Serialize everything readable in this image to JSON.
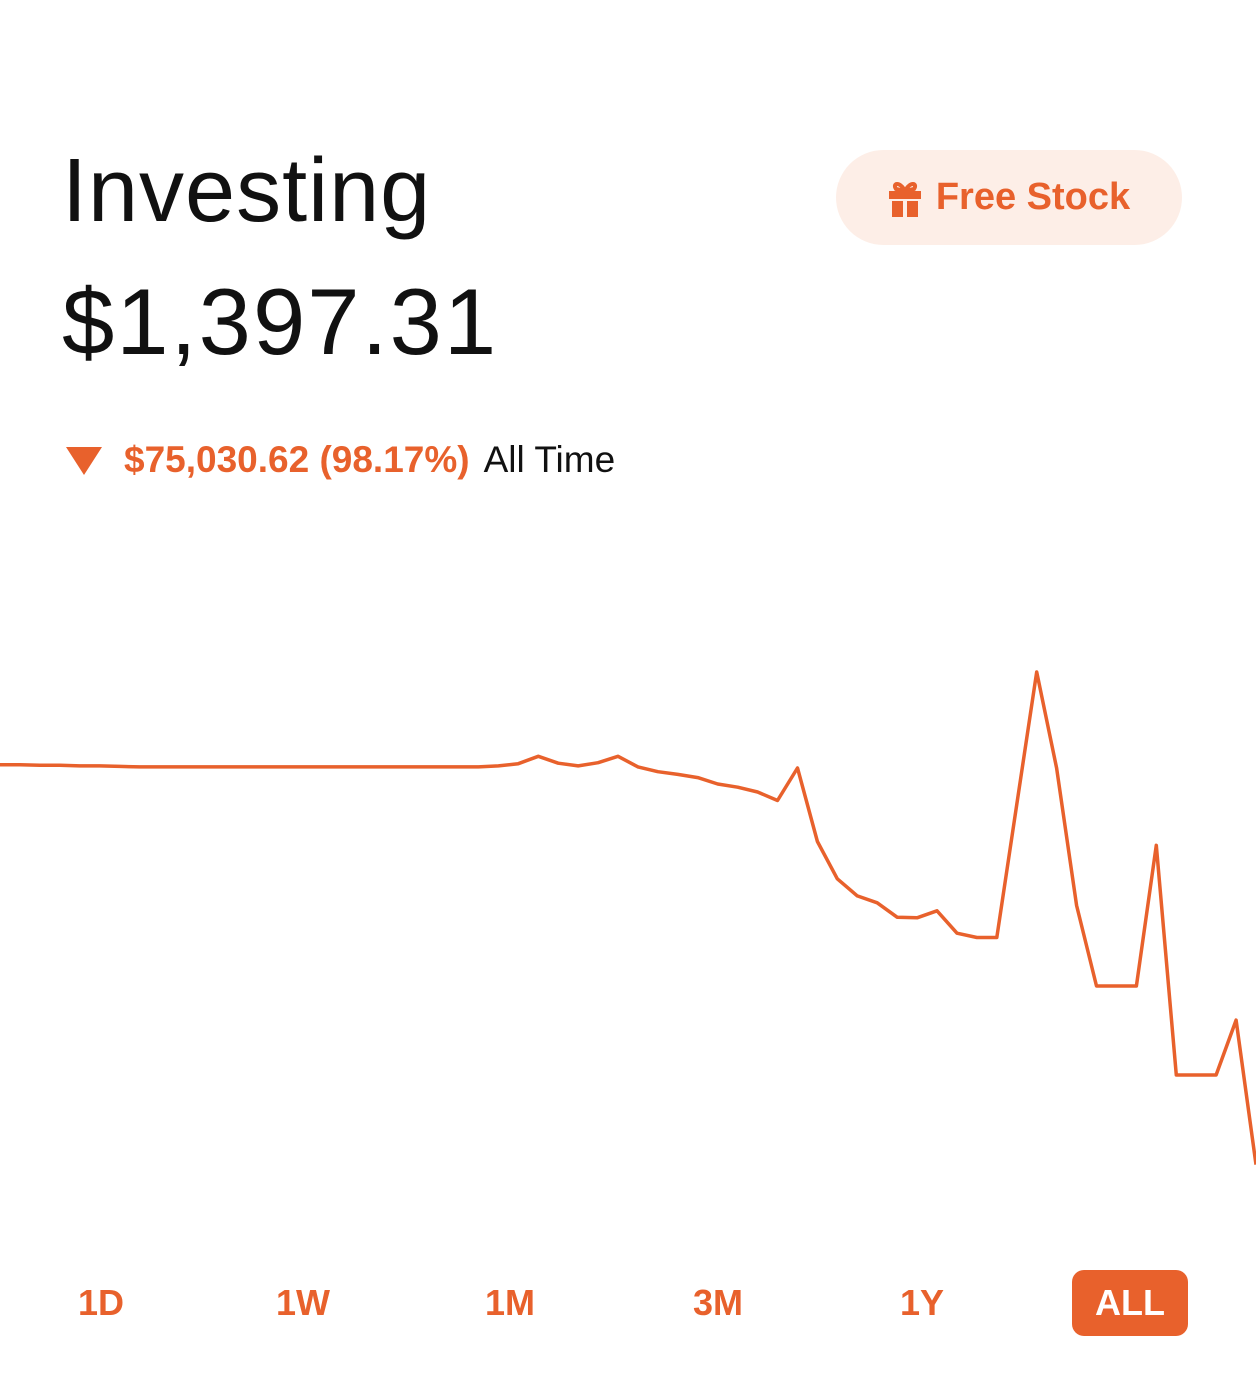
{
  "header": {
    "title": "Investing",
    "value": "$1,397.31",
    "change": "$75,030.62 (98.17%)",
    "period": "All Time",
    "promo_button": "Free Stock"
  },
  "chart_data": {
    "type": "line",
    "color": "#e8612c",
    "ylim": [
      0,
      100000
    ],
    "values": [
      76400,
      76400,
      76300,
      76300,
      76200,
      76200,
      76100,
      76000,
      76000,
      76000,
      76000,
      76000,
      76000,
      76000,
      76000,
      76000,
      76000,
      76000,
      76000,
      76000,
      76000,
      76000,
      76000,
      76000,
      76000,
      76200,
      76600,
      78000,
      76700,
      76200,
      76800,
      78000,
      76000,
      75100,
      74600,
      74000,
      72800,
      72200,
      71300,
      69700,
      75800,
      62000,
      55000,
      51800,
      50500,
      47800,
      47700,
      49000,
      44800,
      44000,
      44000,
      69000,
      93800,
      75800,
      50000,
      34900,
      34900,
      34900,
      61300,
      18200,
      18200,
      18200,
      28500,
      1397.31
    ]
  },
  "range_tabs": [
    "1D",
    "1W",
    "1M",
    "3M",
    "1Y",
    "ALL"
  ],
  "selected_tab": "ALL"
}
